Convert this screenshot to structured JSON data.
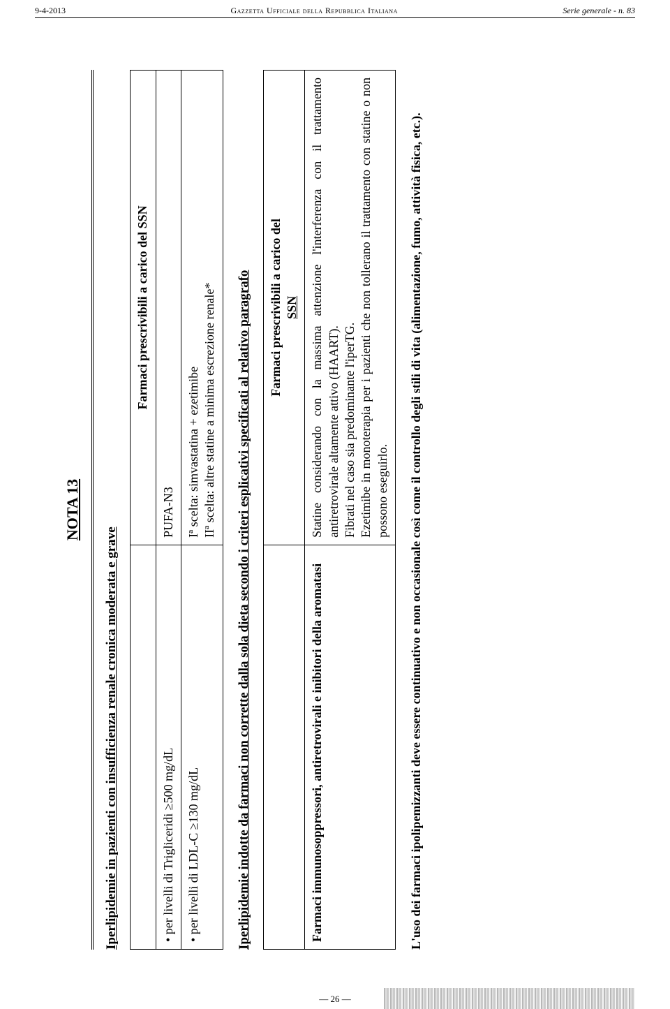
{
  "header": {
    "left": "9-4-2013",
    "center": "Gazzetta Ufficiale della Repubblica Italiana",
    "right": "Serie generale - n. 83"
  },
  "nota": "NOTA 13",
  "section1": {
    "title": "Iperlipidemie in pazienti con insufficienza renale cronica moderata e grave",
    "tableHeader": "Farmaci prescrivibili a carico del SSN",
    "rows": [
      {
        "left": "per livelli di Trigliceridi ≥500 mg/dL",
        "right": "PUFA-N3"
      },
      {
        "left": "per livelli di LDL-C ≥130 mg/dL",
        "right": "Iª scelta: simvastatina + ezetimibe\nIIª scelta: altre statine a minima escrezione renale*"
      }
    ]
  },
  "section2": {
    "title": "Iperlipidemie indotte da farmaci non corrette dalla sola dieta secondo i criteri esplicativi specificati al relativo paragrafo",
    "rowLeft": "Farmaci immunosoppressori, antiretrovirali e inibitori della aromatasi",
    "rowRightHeader": "Farmaci prescrivibili a carico del",
    "rowRightHeaderUL": "SSN",
    "rowRightBody": "Statine considerando con la massima attenzione l'interferenza con il trattamento antiretrovirale altamente attivo (HAART).\nFibrati nel caso sia predominante l'iperTG.\nEzetimibe in monoterapia per i pazienti che non tollerano il trattamento con statine o non possono eseguirlo."
  },
  "footnote": "L'uso dei farmaci ipolipemizzanti deve essere continuativo e non occasionale così come il controllo degli stili di vita (alimentazione, fumo, attività fisica, etc.).",
  "pageNum": "— 26 —"
}
